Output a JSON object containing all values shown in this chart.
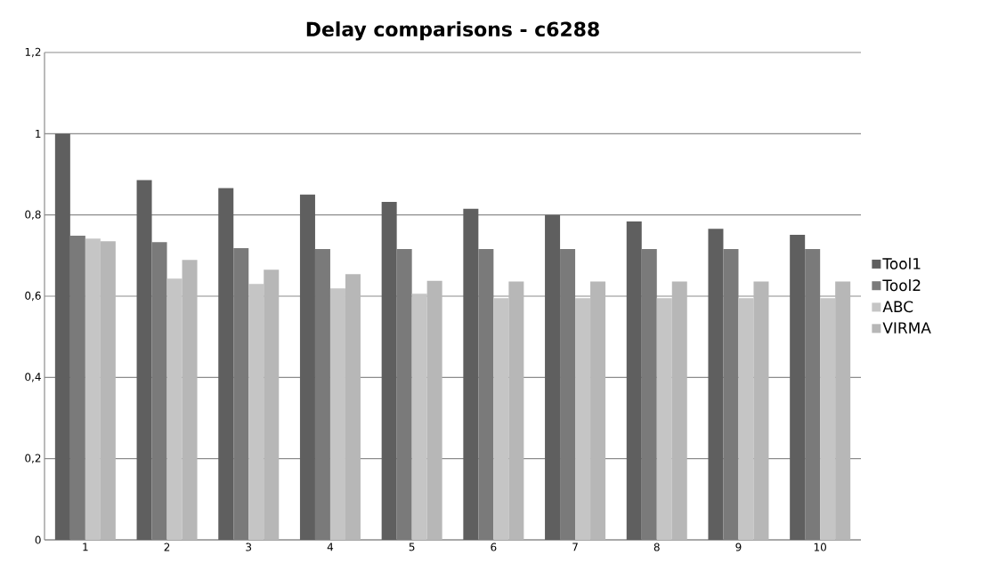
{
  "chart_data": {
    "type": "bar",
    "title": "Delay comparisons - c6288",
    "categories": [
      "1",
      "2",
      "3",
      "4",
      "5",
      "6",
      "7",
      "8",
      "9",
      "10"
    ],
    "series": [
      {
        "name": "Tool1",
        "color": "#5f5f5f",
        "values": [
          1.0,
          0.886,
          0.866,
          0.85,
          0.832,
          0.815,
          0.8,
          0.784,
          0.766,
          0.751
        ]
      },
      {
        "name": "Tool2",
        "color": "#7a7a7a",
        "values": [
          0.749,
          0.733,
          0.718,
          0.716,
          0.716,
          0.716,
          0.716,
          0.716,
          0.716,
          0.716
        ]
      },
      {
        "name": "ABC",
        "color": "#c5c5c5",
        "values": [
          0.742,
          0.643,
          0.63,
          0.619,
          0.606,
          0.595,
          0.595,
          0.595,
          0.595,
          0.595
        ]
      },
      {
        "name": "VIRMA",
        "color": "#b7b7b7",
        "values": [
          0.735,
          0.689,
          0.665,
          0.654,
          0.638,
          0.636,
          0.636,
          0.636,
          0.636,
          0.636
        ]
      }
    ],
    "ylim": [
      0,
      1.2
    ],
    "yticks": [
      {
        "value": 0,
        "label": "0"
      },
      {
        "value": 0.2,
        "label": "0,2"
      },
      {
        "value": 0.4,
        "label": "0,4"
      },
      {
        "value": 0.6,
        "label": "0,6"
      },
      {
        "value": 0.8,
        "label": "0,8"
      },
      {
        "value": 1,
        "label": "1"
      },
      {
        "value": 1.2,
        "label": "1,2"
      }
    ],
    "grid": "y",
    "legend": "right"
  }
}
